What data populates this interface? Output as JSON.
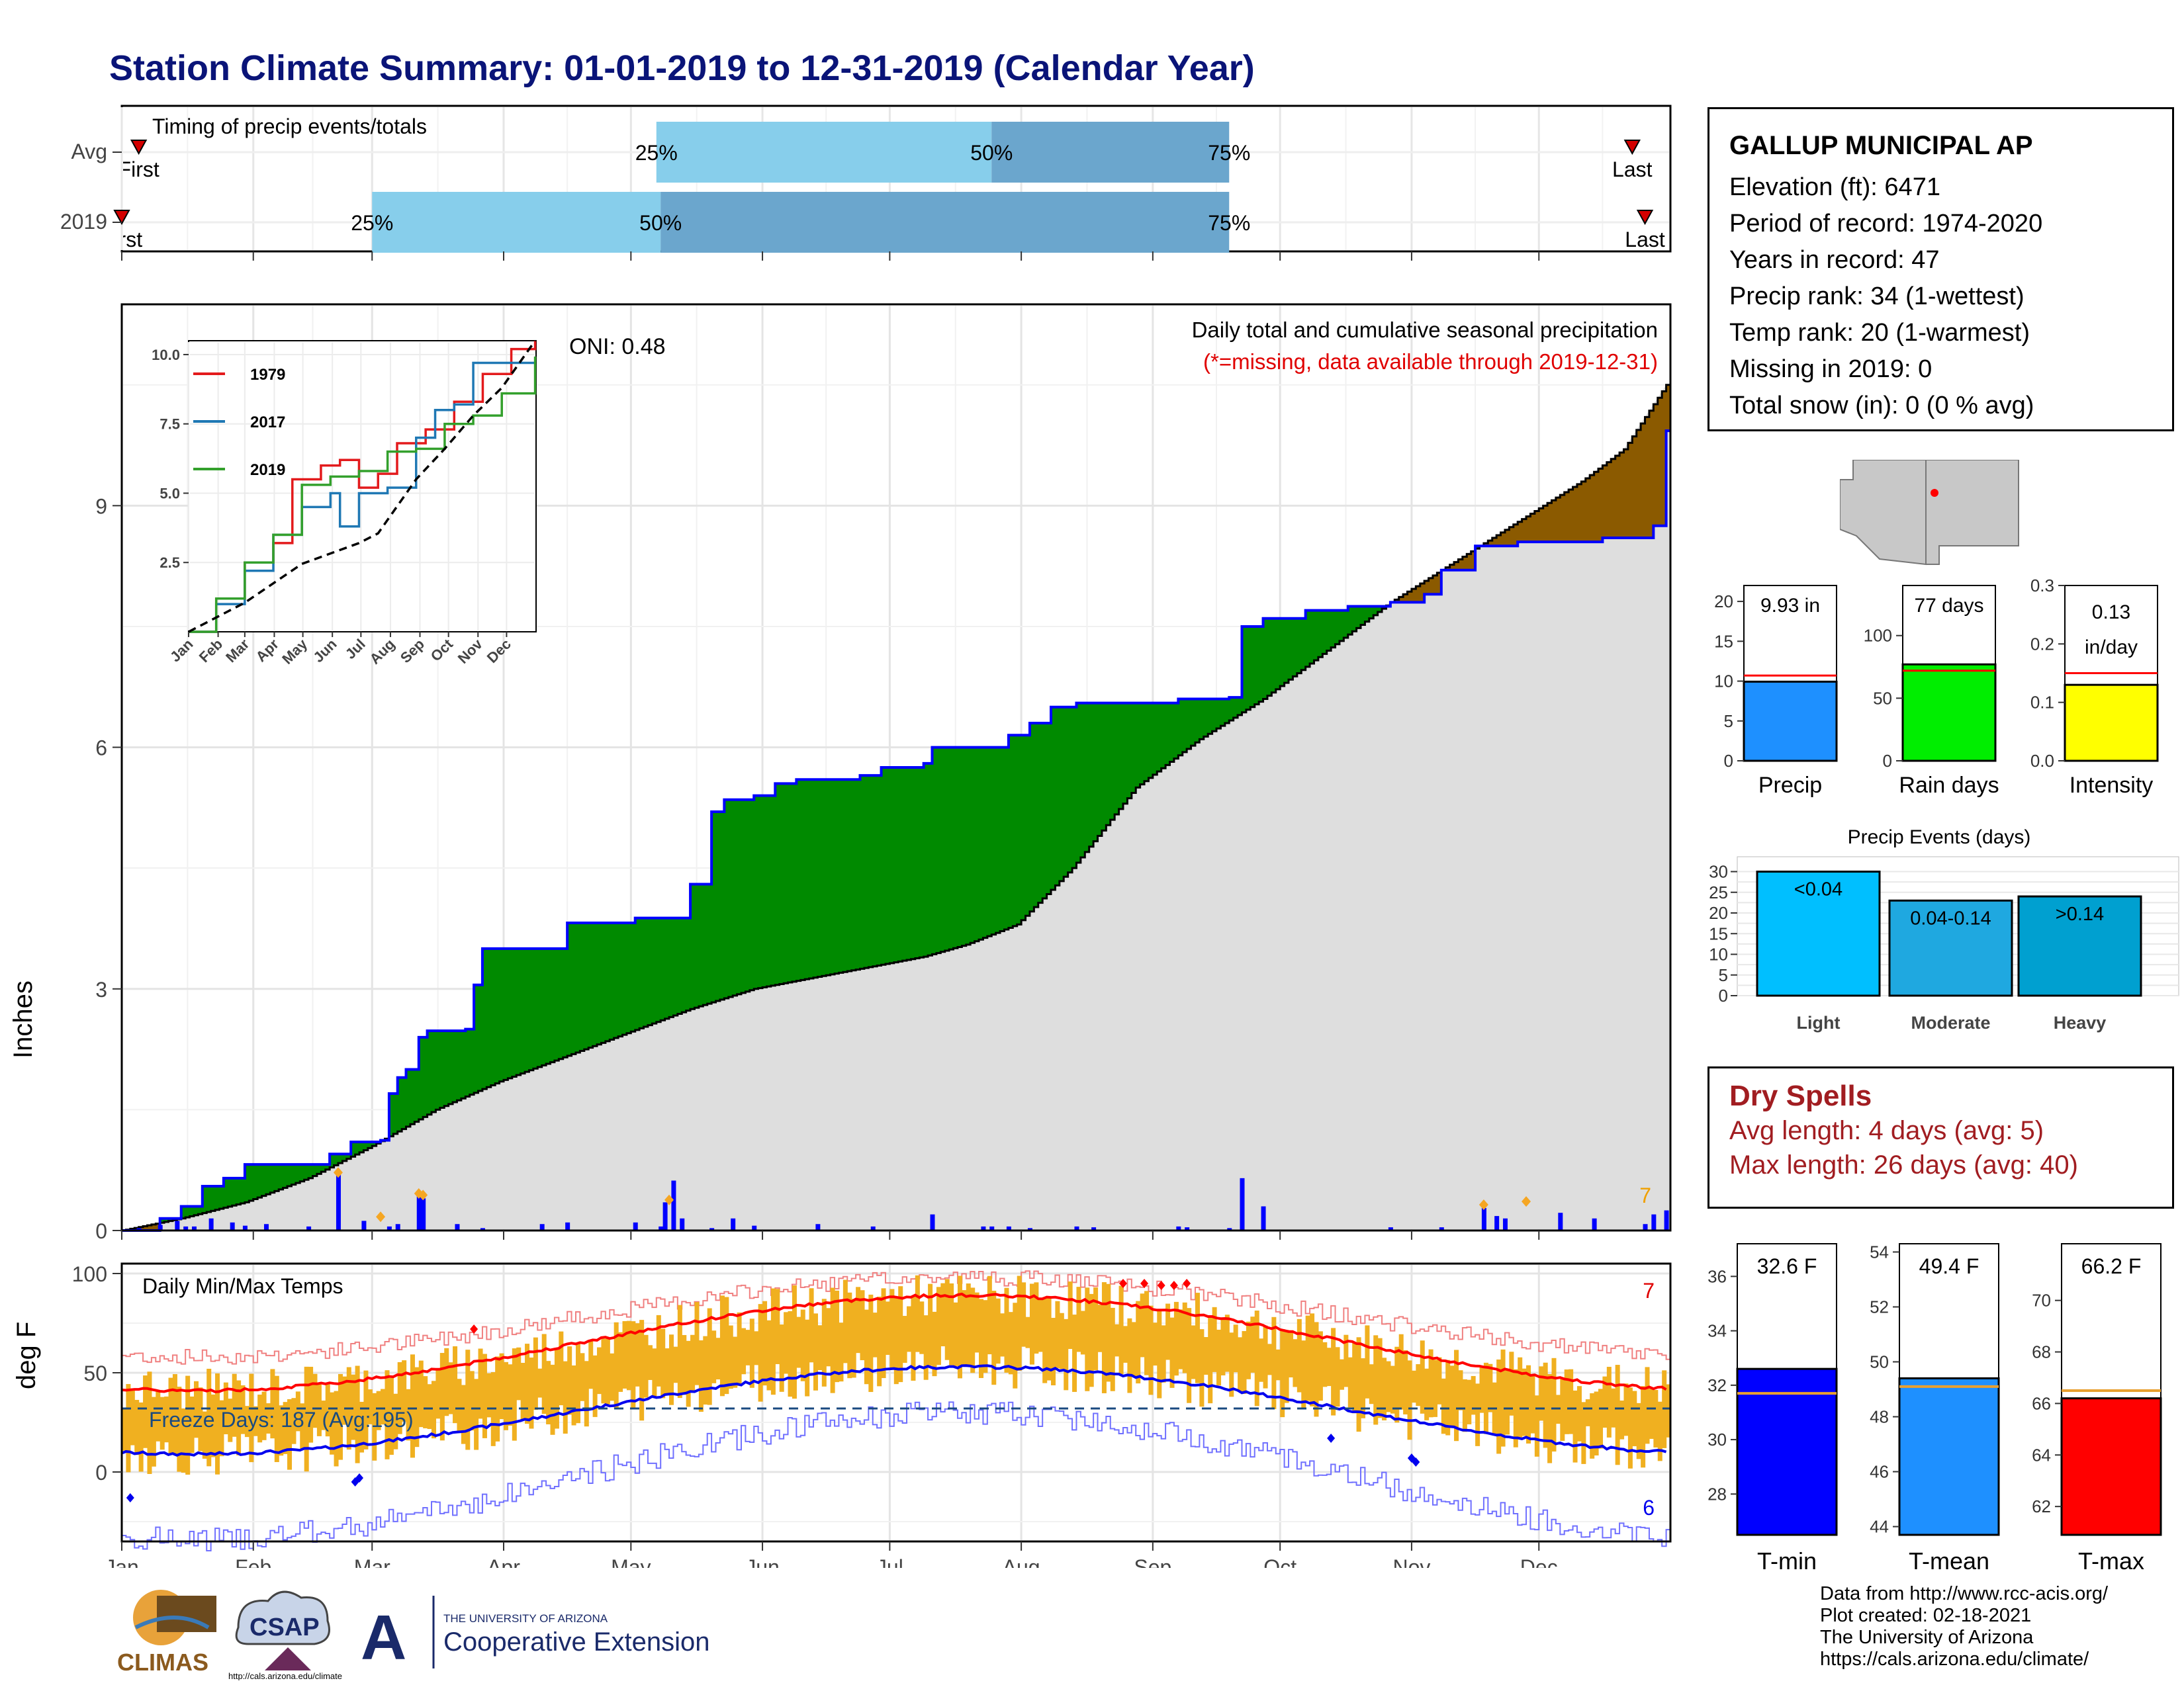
{
  "title": "Station Climate Summary: 01-01-2019 to 12-31-2019 (Calendar Year)",
  "months": [
    "Jan",
    "Feb",
    "Mar",
    "Apr",
    "May",
    "Jun",
    "Jul",
    "Aug",
    "Sep",
    "Oct",
    "Nov",
    "Dec"
  ],
  "timing": {
    "label": "Timing of precip events/totals",
    "rows": [
      {
        "name": "Avg",
        "first_label": "First",
        "last_label": "Last",
        "first_doy": 5,
        "last_doy": 357,
        "p25_doy": 127,
        "p50_doy": 206,
        "p75_doy": 262,
        "p25_label": "25%",
        "p50_label": "50%",
        "p75_label": "75%"
      },
      {
        "name": "2019",
        "first_label": "First",
        "last_label": "Last",
        "first_doy": 1,
        "last_doy": 360,
        "p25_doy": 60,
        "p50_doy": 128,
        "p75_doy": 262,
        "p25_label": "25%",
        "p50_label": "50%",
        "p75_label": "75%"
      }
    ]
  },
  "precip": {
    "ylabel": "Inches",
    "yticks": [
      0,
      3,
      6,
      9
    ],
    "ylim": [
      0,
      11.5
    ],
    "title": "Daily total and cumulative seasonal precipitation",
    "subtitle": "(*=missing, data available through 2019-12-31)",
    "oni": "ONI: 0.48",
    "corner_count": "7",
    "cum_2019": [
      [
        1,
        0
      ],
      [
        10,
        0.15
      ],
      [
        15,
        0.3
      ],
      [
        20,
        0.55
      ],
      [
        25,
        0.65
      ],
      [
        30,
        0.82
      ],
      [
        45,
        0.82
      ],
      [
        50,
        0.95
      ],
      [
        55,
        1.1
      ],
      [
        62,
        1.12
      ],
      [
        64,
        1.7
      ],
      [
        66,
        1.9
      ],
      [
        68,
        2.0
      ],
      [
        71,
        2.4
      ],
      [
        73,
        2.48
      ],
      [
        82,
        2.5
      ],
      [
        84,
        3.05
      ],
      [
        86,
        3.5
      ],
      [
        100,
        3.5
      ],
      [
        106,
        3.82
      ],
      [
        122,
        3.88
      ],
      [
        130,
        3.88
      ],
      [
        135,
        4.3
      ],
      [
        140,
        5.2
      ],
      [
        143,
        5.35
      ],
      [
        150,
        5.4
      ],
      [
        155,
        5.55
      ],
      [
        160,
        5.6
      ],
      [
        175,
        5.65
      ],
      [
        180,
        5.75
      ],
      [
        190,
        5.8
      ],
      [
        192,
        6.0
      ],
      [
        205,
        6.0
      ],
      [
        210,
        6.15
      ],
      [
        215,
        6.3
      ],
      [
        220,
        6.5
      ],
      [
        226,
        6.55
      ],
      [
        245,
        6.55
      ],
      [
        250,
        6.6
      ],
      [
        262,
        6.62
      ],
      [
        265,
        7.5
      ],
      [
        270,
        7.6
      ],
      [
        280,
        7.7
      ],
      [
        290,
        7.75
      ],
      [
        300,
        7.8
      ],
      [
        308,
        7.9
      ],
      [
        312,
        8.2
      ],
      [
        320,
        8.5
      ],
      [
        330,
        8.55
      ],
      [
        350,
        8.6
      ],
      [
        362,
        8.75
      ],
      [
        365,
        9.93
      ]
    ],
    "cum_avg": [
      [
        1,
        0
      ],
      [
        15,
        0.15
      ],
      [
        30,
        0.35
      ],
      [
        45,
        0.65
      ],
      [
        60,
        1.05
      ],
      [
        75,
        1.5
      ],
      [
        90,
        1.85
      ],
      [
        105,
        2.15
      ],
      [
        120,
        2.45
      ],
      [
        135,
        2.75
      ],
      [
        150,
        3.0
      ],
      [
        165,
        3.15
      ],
      [
        175,
        3.25
      ],
      [
        190,
        3.4
      ],
      [
        200,
        3.55
      ],
      [
        212,
        3.8
      ],
      [
        225,
        4.5
      ],
      [
        240,
        5.5
      ],
      [
        255,
        6.1
      ],
      [
        270,
        6.6
      ],
      [
        285,
        7.2
      ],
      [
        300,
        7.8
      ],
      [
        315,
        8.3
      ],
      [
        330,
        8.8
      ],
      [
        345,
        9.3
      ],
      [
        355,
        9.7
      ],
      [
        365,
        10.5
      ]
    ],
    "daily_bars_doy": [
      [
        5,
        0.03
      ],
      [
        10,
        0.07
      ],
      [
        14,
        0.12
      ],
      [
        16,
        0.05
      ],
      [
        18,
        0.05
      ],
      [
        22,
        0.15
      ],
      [
        27,
        0.1
      ],
      [
        30,
        0.06
      ],
      [
        35,
        0.08
      ],
      [
        45,
        0.05
      ],
      [
        52,
        0.7
      ],
      [
        58,
        0.12
      ],
      [
        64,
        0.05
      ],
      [
        66,
        0.08
      ],
      [
        71,
        0.45
      ],
      [
        72,
        0.4
      ],
      [
        80,
        0.08
      ],
      [
        86,
        0.03
      ],
      [
        100,
        0.08
      ],
      [
        106,
        0.1
      ],
      [
        122,
        0.1
      ],
      [
        128,
        0.05
      ],
      [
        129,
        0.35
      ],
      [
        131,
        0.62
      ],
      [
        133,
        0.15
      ],
      [
        140,
        0.03
      ],
      [
        145,
        0.15
      ],
      [
        150,
        0.06
      ],
      [
        165,
        0.08
      ],
      [
        178,
        0.05
      ],
      [
        192,
        0.2
      ],
      [
        204,
        0.05
      ],
      [
        206,
        0.05
      ],
      [
        210,
        0.05
      ],
      [
        215,
        0.03
      ],
      [
        226,
        0.05
      ],
      [
        230,
        0.04
      ],
      [
        250,
        0.05
      ],
      [
        252,
        0.04
      ],
      [
        262,
        0.03
      ],
      [
        270,
        0.3
      ],
      [
        265,
        0.65
      ],
      [
        300,
        0.04
      ],
      [
        312,
        0.04
      ],
      [
        322,
        0.28
      ],
      [
        325,
        0.18
      ],
      [
        327,
        0.15
      ],
      [
        340,
        0.22
      ],
      [
        348,
        0.15
      ],
      [
        360,
        0.08
      ],
      [
        362,
        0.2
      ],
      [
        365,
        0.25
      ]
    ],
    "inset": {
      "yticks": [
        2.5,
        5.0,
        7.5,
        10.0
      ],
      "ylim": [
        0,
        10.5
      ],
      "xticks": [
        "Jan",
        "Feb",
        "Mar",
        "Apr",
        "May",
        "Jun",
        "Jul",
        "Aug",
        "Sep",
        "Oct",
        "Nov",
        "Dec"
      ],
      "series": [
        {
          "name": "1979",
          "color": "#e31a1c",
          "values": [
            [
              1,
              0
            ],
            [
              30,
              1.2
            ],
            [
              60,
              2.5
            ],
            [
              90,
              3.2
            ],
            [
              110,
              5.5
            ],
            [
              140,
              6.0
            ],
            [
              160,
              6.2
            ],
            [
              180,
              5.2
            ],
            [
              200,
              5.7
            ],
            [
              220,
              6.8
            ],
            [
              250,
              7.3
            ],
            [
              280,
              8.3
            ],
            [
              310,
              9.3
            ],
            [
              340,
              10.2
            ],
            [
              365,
              10.5
            ]
          ]
        },
        {
          "name": "2017",
          "color": "#1f78b4",
          "values": [
            [
              1,
              0
            ],
            [
              30,
              1.0
            ],
            [
              60,
              2.2
            ],
            [
              90,
              3.5
            ],
            [
              120,
              4.5
            ],
            [
              150,
              5.0
            ],
            [
              160,
              3.8
            ],
            [
              180,
              5.0
            ],
            [
              210,
              5.2
            ],
            [
              240,
              7.0
            ],
            [
              260,
              8.0
            ],
            [
              280,
              8.2
            ],
            [
              300,
              9.7
            ],
            [
              330,
              9.7
            ],
            [
              365,
              9.7
            ]
          ]
        },
        {
          "name": "2019",
          "color": "#33a02c",
          "values": [
            [
              1,
              0
            ],
            [
              30,
              1.2
            ],
            [
              60,
              2.5
            ],
            [
              90,
              3.5
            ],
            [
              120,
              5.3
            ],
            [
              150,
              5.6
            ],
            [
              180,
              5.8
            ],
            [
              210,
              6.5
            ],
            [
              240,
              6.6
            ],
            [
              270,
              7.5
            ],
            [
              300,
              7.8
            ],
            [
              330,
              8.6
            ],
            [
              365,
              9.93
            ]
          ]
        },
        {
          "name": "avg",
          "color": "#000000",
          "dashed": true,
          "values": [
            [
              1,
              0
            ],
            [
              60,
              1.05
            ],
            [
              120,
              2.45
            ],
            [
              180,
              3.2
            ],
            [
              200,
              3.55
            ],
            [
              240,
              5.5
            ],
            [
              270,
              6.6
            ],
            [
              300,
              7.8
            ],
            [
              330,
              8.8
            ],
            [
              365,
              10.5
            ]
          ]
        }
      ]
    }
  },
  "temps": {
    "ylabel": "deg F",
    "label": "Daily Min/Max Temps",
    "yticks": [
      0,
      50,
      100
    ],
    "ylim": [
      -35,
      105
    ],
    "freeze_label": "Freeze Days: 187 (Avg:195)",
    "freeze_line": 32,
    "count_top": "7",
    "count_bottom": "6"
  },
  "sidebar_station": {
    "name": "GALLUP MUNICIPAL AP",
    "lines": [
      "Elevation (ft): 6471",
      "Period of record: 1974-2020",
      "Years in record: 47",
      "Precip rank: 34 (1-wettest)",
      "Temp rank: 20 (1-warmest)",
      "Missing in 2019: 0",
      "Total snow (in): 0 (0 % avg)"
    ]
  },
  "mini_bars": [
    {
      "label": "Precip",
      "value_label": "9.93 in",
      "value": 9.93,
      "avg": 10.7,
      "ymax": 22,
      "ticks": [
        0,
        5,
        10,
        15,
        20
      ],
      "color": "#1e90ff"
    },
    {
      "label": "Rain days",
      "value_label": "77 days",
      "value": 77,
      "avg": 72,
      "ymax": 140,
      "ticks": [
        0,
        50,
        100
      ],
      "color": "#00ee00"
    },
    {
      "label": "Intensity",
      "value_label1": "0.13",
      "value_label2": "in/day",
      "value": 0.13,
      "avg": 0.15,
      "ymax": 0.3,
      "ticks": [
        "0.0",
        "0.1",
        "0.2",
        "0.3"
      ],
      "color": "#ffff00"
    }
  ],
  "precip_events": {
    "title": "Precip Events (days)",
    "yticks": [
      0,
      5,
      10,
      15,
      20,
      25,
      30
    ],
    "bars": [
      {
        "cat": "Light",
        "inner": "<0.04",
        "value": 30,
        "color": "#00bfff"
      },
      {
        "cat": "Moderate",
        "inner": "0.04-0.14",
        "value": 23,
        "color": "#1fa8e0"
      },
      {
        "cat": "Heavy",
        "inner": ">0.14",
        "value": 24,
        "color": "#00a0d0"
      }
    ]
  },
  "dry_spells": {
    "title": "Dry Spells",
    "avg": "Avg length: 4 days (avg: 5)",
    "max": "Max length: 26 days (avg: 40)"
  },
  "temp_bars": [
    {
      "label": "T-min",
      "value_label": "32.6 F",
      "value": 32.6,
      "avg": 31.7,
      "ymin": 26.5,
      "ymax": 37.2,
      "ticks": [
        28,
        30,
        32,
        34,
        36
      ],
      "color": "#0000ff"
    },
    {
      "label": "T-mean",
      "value_label": "49.4 F",
      "value": 49.4,
      "avg": 49.1,
      "ymin": 43.7,
      "ymax": 54.3,
      "ticks": [
        44,
        46,
        48,
        50,
        52,
        54
      ],
      "color": "#1e90ff"
    },
    {
      "label": "T-max",
      "value_label": "66.2 F",
      "value": 66.2,
      "avg": 66.5,
      "ymin": 60.9,
      "ymax": 72.2,
      "ticks": [
        62,
        64,
        66,
        68,
        70
      ],
      "color": "#ff0000"
    }
  ],
  "logos": {
    "climas": "CLIMAS",
    "csap": "CSAP",
    "csap_url": "http://cals.arizona.edu/climate",
    "ua_small": "THE UNIVERSITY OF ARIZONA",
    "ua_big": "Cooperative Extension"
  },
  "credits": [
    "Data from http://www.rcc-acis.org/",
    "Plot created: 02-18-2021",
    "The University of Arizona",
    "https://cals.arizona.edu/climate/"
  ]
}
